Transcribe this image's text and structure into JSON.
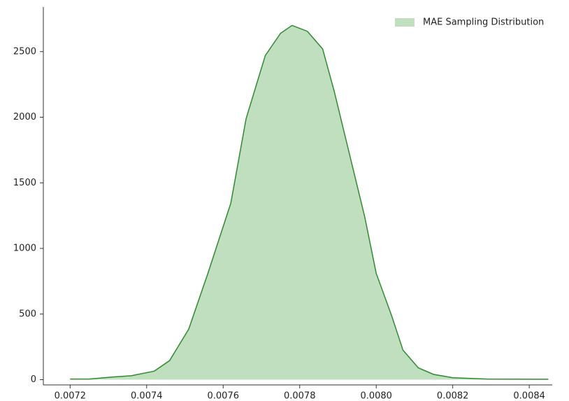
{
  "chart_data": {
    "type": "area",
    "x": [
      0.0072,
      0.00725,
      0.00731,
      0.00736,
      0.00742,
      0.00746,
      0.00751,
      0.00756,
      0.00762,
      0.00766,
      0.00771,
      0.00775,
      0.00778,
      0.00782,
      0.00786,
      0.00789,
      0.00793,
      0.00797,
      0.008,
      0.00804,
      0.00807,
      0.00811,
      0.00815,
      0.0082,
      0.00829,
      0.0084,
      0.00845
    ],
    "series": [
      {
        "name": "MAE Sampling Distribution",
        "color": "#2e8b2e",
        "fill": "#bfdfbf",
        "values": [
          5,
          5,
          20,
          30,
          65,
          145,
          385,
          810,
          1345,
          1990,
          2470,
          2640,
          2700,
          2655,
          2520,
          2200,
          1720,
          1240,
          810,
          490,
          225,
          90,
          40,
          15,
          5,
          3,
          3
        ]
      }
    ],
    "xlim": [
      0.00713,
      0.00846
    ],
    "ylim": [
      -40,
      2840
    ],
    "xticks": [
      0.0072,
      0.0074,
      0.0076,
      0.0078,
      {
        "value": 0.008,
        "label": "0.0080"
      },
      0.0082,
      0.0084
    ],
    "yticks": [
      0,
      500,
      1000,
      1500,
      2000,
      2500
    ],
    "legend": "upper right"
  }
}
